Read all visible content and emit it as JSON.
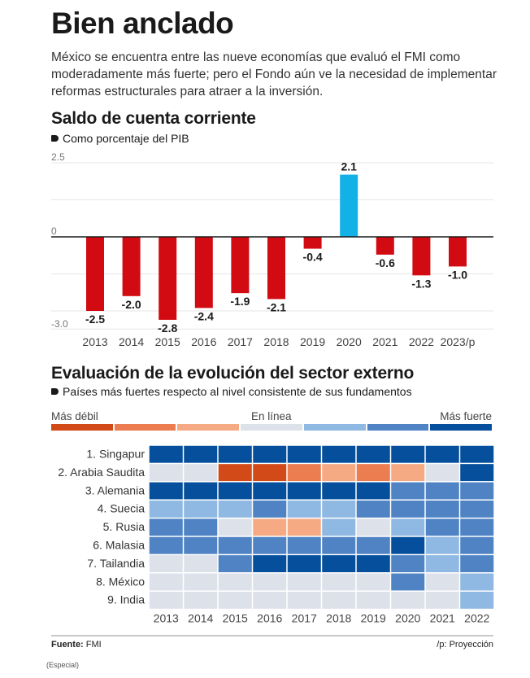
{
  "header": {
    "title": "Bien anclado",
    "intro": "México se encuentra entre las nueve economías que evaluó el FMI como moderadamente más fuerte; pero el Fondo aún ve la necesidad de implementar reformas estructurales para atraer a la inversión."
  },
  "colors": {
    "negative_bar": "#d20a11",
    "positive_bar": "#13b1e6",
    "zero_line": "#1a1a1a",
    "gridline": "#e6e6e6",
    "scale": [
      "#d24a18",
      "#ec7d50",
      "#f5aa84",
      "#dde2ea",
      "#8fb8e2",
      "#4f83c4",
      "#064f9c"
    ]
  },
  "chart_data": [
    {
      "type": "bar",
      "title": "Saldo de cuenta corriente",
      "subtitle": "Como porcentaje del PIB",
      "xlabel": "",
      "ylabel": "",
      "categories": [
        "2013",
        "2014",
        "2015",
        "2016",
        "2017",
        "2018",
        "2019",
        "2020",
        "2021",
        "2022",
        "2023/p"
      ],
      "values": [
        -2.5,
        -2.0,
        -2.8,
        -2.4,
        -1.9,
        -2.1,
        -0.4,
        2.1,
        -0.6,
        -1.3,
        -1.0
      ],
      "data_labels": [
        "-2.5",
        "-2.0",
        "-2.8",
        "-2.4",
        "-1.9",
        "-2.1",
        "-0.4",
        "2.1",
        "-0.6",
        "-1.3",
        "-1.0"
      ],
      "ylim": [
        -3.0,
        2.5
      ],
      "yticks": [
        2.5,
        0,
        -3.0
      ],
      "ytick_labels": [
        "2.5",
        "0",
        "-3.0"
      ],
      "gridlines": [
        2.5,
        1.25,
        -1.25,
        -2.5
      ],
      "grid": true,
      "legend": "none"
    },
    {
      "type": "heatmap",
      "title": "Evaluación de la evolución del sector externo",
      "subtitle": "Países más fuertes respecto al nivel consistente de sus fundamentos",
      "scale_labels": {
        "low": "Más débil",
        "mid": "En línea",
        "high": "Más fuerte"
      },
      "scale_levels": 7,
      "x": [
        "2013",
        "2014",
        "2015",
        "2016",
        "2017",
        "2018",
        "2019",
        "2020",
        "2021",
        "2022"
      ],
      "y": [
        "1. Singapur",
        "2. Arabia Saudita",
        "3. Alemania",
        "4. Suecia",
        "5. Rusia",
        "6. Malasia",
        "7. Tailandia",
        "8. México",
        "9. India"
      ],
      "values": [
        [
          7,
          7,
          7,
          7,
          7,
          7,
          7,
          7,
          7,
          7
        ],
        [
          4,
          4,
          1,
          1,
          2,
          3,
          2,
          3,
          4,
          7
        ],
        [
          7,
          7,
          7,
          7,
          7,
          7,
          7,
          6,
          6,
          6
        ],
        [
          5,
          5,
          5,
          6,
          5,
          5,
          6,
          6,
          6,
          6
        ],
        [
          6,
          6,
          4,
          3,
          3,
          5,
          4,
          5,
          6,
          6
        ],
        [
          6,
          6,
          6,
          6,
          6,
          6,
          6,
          7,
          5,
          6
        ],
        [
          4,
          4,
          6,
          7,
          7,
          7,
          7,
          6,
          5,
          6
        ],
        [
          4,
          4,
          4,
          4,
          4,
          4,
          4,
          6,
          4,
          5
        ],
        [
          4,
          4,
          4,
          4,
          4,
          4,
          4,
          4,
          4,
          5
        ]
      ],
      "legend": "top"
    }
  ],
  "footer": {
    "source_label": "Fuente:",
    "source_value": " FMI",
    "projection_note": "/p: Proyección",
    "credit": "(Especial)"
  }
}
